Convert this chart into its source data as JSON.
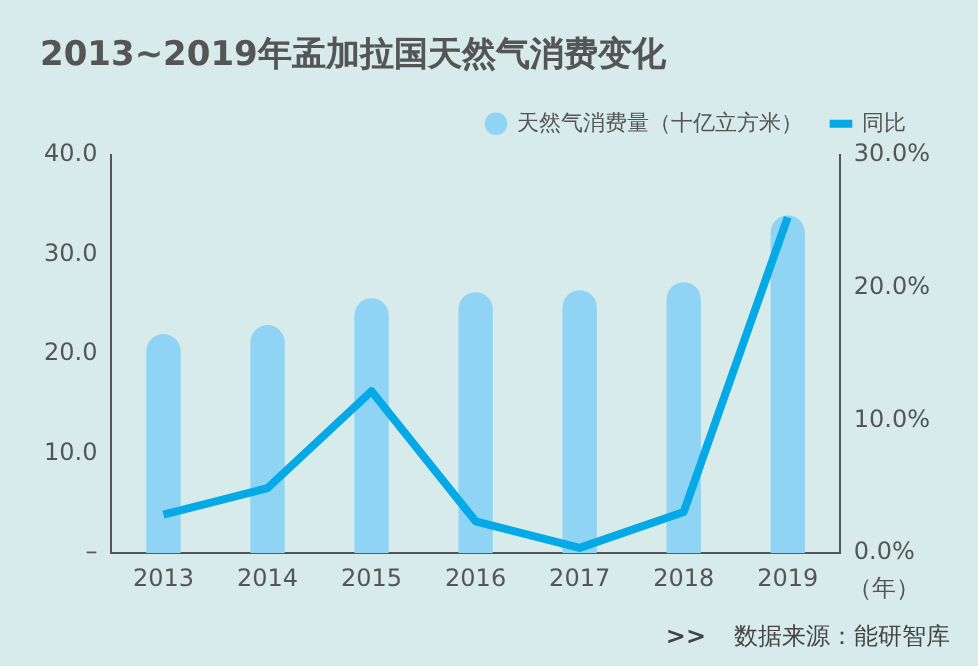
{
  "chart_data": {
    "type": "bar",
    "title": "2013~2019年孟加拉国天然气消费变化",
    "xlabel": "（年）",
    "categories": [
      "2013",
      "2014",
      "2015",
      "2016",
      "2017",
      "2018",
      "2019"
    ],
    "series": [
      {
        "name": "天然气消费量（十亿立方米）",
        "color": "#8fd4f4",
        "values": [
          22.0,
          22.9,
          25.6,
          26.2,
          26.4,
          27.2,
          33.9
        ]
      },
      {
        "name": "同比",
        "type": "line",
        "axis": "y2",
        "color": "#05a9e6",
        "values": [
          2.9,
          4.9,
          12.2,
          2.4,
          0.4,
          3.1,
          25.3
        ]
      }
    ],
    "ylim": [
      0,
      40
    ],
    "yticks": [
      {
        "value": 0,
        "label": "–"
      },
      {
        "value": 10,
        "label": "10.0"
      },
      {
        "value": 20,
        "label": "20.0"
      },
      {
        "value": 30,
        "label": "30.0"
      },
      {
        "value": 40,
        "label": "40.0"
      }
    ],
    "y2lim": [
      0,
      30
    ],
    "y2ticks": [
      {
        "value": 0,
        "label": "0.0%"
      },
      {
        "value": 10,
        "label": "10.0%"
      },
      {
        "value": 20,
        "label": "20.0%"
      },
      {
        "value": 30,
        "label": "30.0%"
      }
    ],
    "grid": false,
    "legend": "top right",
    "marker": "none",
    "line_style": "solid",
    "annotations": [
      ">>",
      "数据来源：能研智库"
    ]
  }
}
